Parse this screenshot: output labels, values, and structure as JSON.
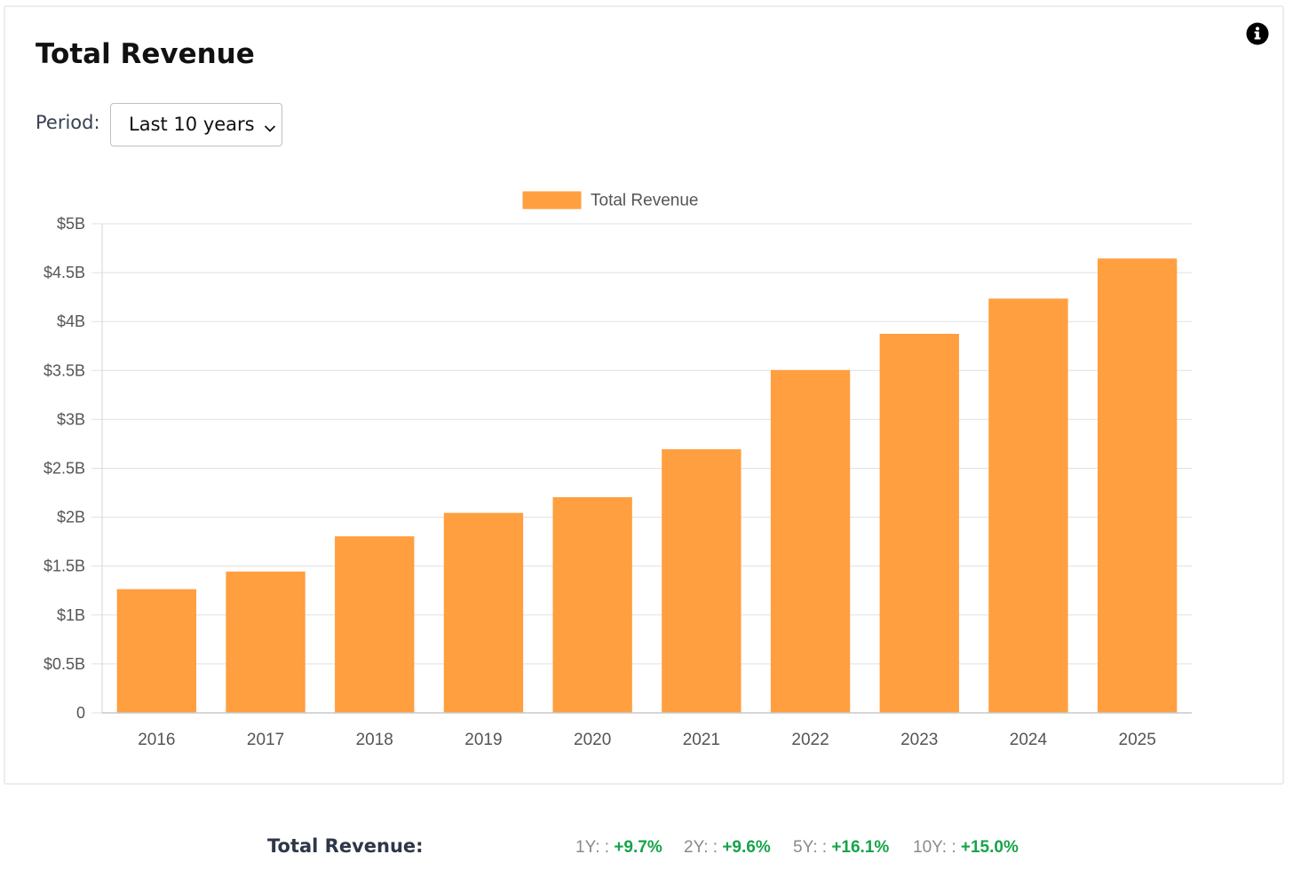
{
  "title": "Total Revenue",
  "info_icon": "info-circle-icon",
  "period": {
    "label": "Period:",
    "selected": "Last 10 years"
  },
  "chart_data": {
    "type": "bar",
    "legend": {
      "label": "Total Revenue",
      "position": "top-center"
    },
    "categories": [
      "2016",
      "2017",
      "2018",
      "2019",
      "2020",
      "2021",
      "2022",
      "2023",
      "2024",
      "2025"
    ],
    "series": [
      {
        "name": "Total Revenue",
        "color": "#ff9f40",
        "values": [
          1.26,
          1.44,
          1.8,
          2.04,
          2.2,
          2.69,
          3.5,
          3.87,
          4.23,
          4.64
        ]
      }
    ],
    "ylim": [
      0,
      5
    ],
    "y_ticks": [
      {
        "value": 0,
        "label": "0"
      },
      {
        "value": 0.5,
        "label": "$0.5B"
      },
      {
        "value": 1,
        "label": "$1B"
      },
      {
        "value": 1.5,
        "label": "$1.5B"
      },
      {
        "value": 2,
        "label": "$2B"
      },
      {
        "value": 2.5,
        "label": "$2.5B"
      },
      {
        "value": 3,
        "label": "$3B"
      },
      {
        "value": 3.5,
        "label": "$3.5B"
      },
      {
        "value": 4,
        "label": "$4B"
      },
      {
        "value": 4.5,
        "label": "$4.5B"
      },
      {
        "value": 5,
        "label": "$5B"
      }
    ],
    "grid": true,
    "title": "",
    "xlabel": "",
    "ylabel": ""
  },
  "summary": {
    "label": "Total Revenue:",
    "growth_color": "#16a34a",
    "stats": [
      {
        "label": "1Y: :",
        "value": "+9.7%"
      },
      {
        "label": "2Y: :",
        "value": "+9.6%"
      },
      {
        "label": "5Y: :",
        "value": "+16.1%"
      },
      {
        "label": "10Y: :",
        "value": "+15.0%"
      }
    ]
  }
}
